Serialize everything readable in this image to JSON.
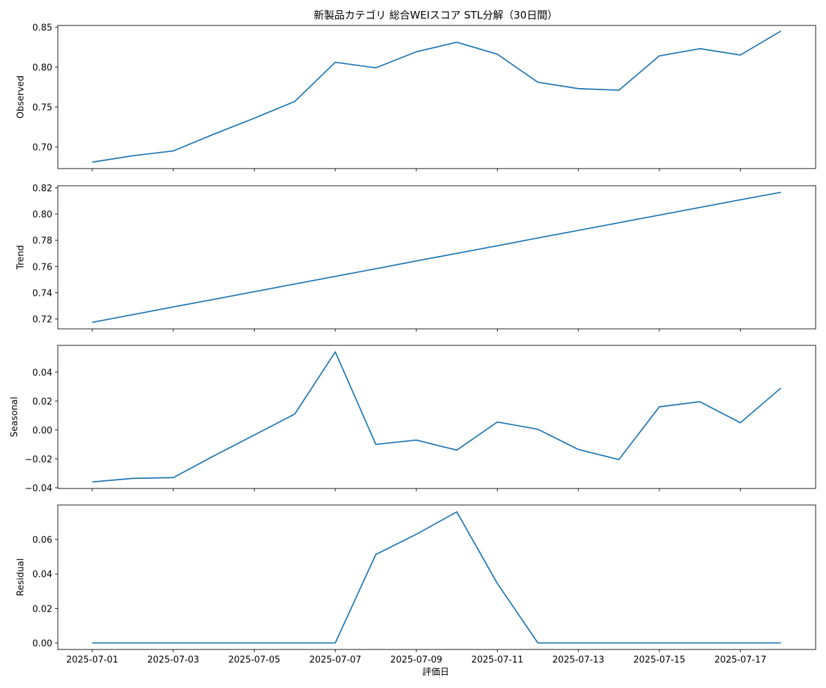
{
  "figure": {
    "title": "新製品カテゴリ 総合WEIスコア STL分解（30日間）",
    "xlabel": "評価日"
  },
  "chart_data": [
    {
      "type": "line",
      "ylabel": "Observed",
      "x": [
        "2025-07-01",
        "2025-07-02",
        "2025-07-03",
        "2025-07-04",
        "2025-07-05",
        "2025-07-06",
        "2025-07-07",
        "2025-07-08",
        "2025-07-09",
        "2025-07-10",
        "2025-07-11",
        "2025-07-12",
        "2025-07-13",
        "2025-07-14",
        "2025-07-15",
        "2025-07-16",
        "2025-07-17",
        "2025-07-18"
      ],
      "values": [
        0.681,
        0.689,
        0.695,
        0.716,
        0.736,
        0.757,
        0.806,
        0.799,
        0.819,
        0.831,
        0.816,
        0.781,
        0.773,
        0.771,
        0.814,
        0.823,
        0.815,
        0.845
      ],
      "ylim": [
        0.673,
        0.852
      ],
      "yticks": [
        "0.70",
        "0.75",
        "0.80",
        "0.85"
      ],
      "ytick_values": [
        0.7,
        0.75,
        0.8,
        0.85
      ],
      "color": "#1f77b4"
    },
    {
      "type": "line",
      "ylabel": "Trend",
      "x": [
        "2025-07-01",
        "2025-07-02",
        "2025-07-03",
        "2025-07-04",
        "2025-07-05",
        "2025-07-06",
        "2025-07-07",
        "2025-07-08",
        "2025-07-09",
        "2025-07-10",
        "2025-07-11",
        "2025-07-12",
        "2025-07-13",
        "2025-07-14",
        "2025-07-15",
        "2025-07-16",
        "2025-07-17",
        "2025-07-18"
      ],
      "values": [
        0.7175,
        0.7233,
        0.7292,
        0.735,
        0.7408,
        0.7467,
        0.7525,
        0.7583,
        0.7642,
        0.77,
        0.7758,
        0.7817,
        0.7875,
        0.7933,
        0.7992,
        0.805,
        0.8108,
        0.8165
      ],
      "ylim": [
        0.7125,
        0.8215
      ],
      "yticks": [
        "0.72",
        "0.74",
        "0.76",
        "0.78",
        "0.80",
        "0.82"
      ],
      "ytick_values": [
        0.72,
        0.74,
        0.76,
        0.78,
        0.8,
        0.82
      ],
      "color": "#1f77b4"
    },
    {
      "type": "line",
      "ylabel": "Seasonal",
      "x": [
        "2025-07-01",
        "2025-07-02",
        "2025-07-03",
        "2025-07-04",
        "2025-07-05",
        "2025-07-06",
        "2025-07-07",
        "2025-07-08",
        "2025-07-09",
        "2025-07-10",
        "2025-07-11",
        "2025-07-12",
        "2025-07-13",
        "2025-07-14",
        "2025-07-15",
        "2025-07-16",
        "2025-07-17",
        "2025-07-18"
      ],
      "values": [
        -0.036,
        -0.0335,
        -0.033,
        -0.018,
        -0.0035,
        0.011,
        0.054,
        -0.01,
        -0.007,
        -0.014,
        0.0055,
        0.0005,
        -0.0135,
        -0.0205,
        0.016,
        0.0195,
        0.005,
        0.029
      ],
      "ylim": [
        -0.0405,
        0.0585
      ],
      "yticks": [
        "−0.04",
        "−0.02",
        "0.00",
        "0.02",
        "0.04"
      ],
      "ytick_values": [
        -0.04,
        -0.02,
        0.0,
        0.02,
        0.04
      ],
      "color": "#1f77b4"
    },
    {
      "type": "line",
      "ylabel": "Residual",
      "x": [
        "2025-07-01",
        "2025-07-02",
        "2025-07-03",
        "2025-07-04",
        "2025-07-05",
        "2025-07-06",
        "2025-07-07",
        "2025-07-08",
        "2025-07-09",
        "2025-07-10",
        "2025-07-11",
        "2025-07-12",
        "2025-07-13",
        "2025-07-14",
        "2025-07-15",
        "2025-07-16",
        "2025-07-17",
        "2025-07-18"
      ],
      "values": [
        0.0,
        0.0,
        0.0,
        0.0,
        0.0,
        0.0,
        0.0,
        0.0513,
        0.063,
        0.076,
        0.0345,
        0.0,
        0.0,
        0.0,
        0.0,
        0.0,
        0.0,
        0.0
      ],
      "ylim": [
        -0.0038,
        0.08
      ],
      "yticks": [
        "0.00",
        "0.02",
        "0.04",
        "0.06"
      ],
      "ytick_values": [
        0.0,
        0.02,
        0.04,
        0.06
      ],
      "color": "#1f77b4"
    }
  ],
  "xticks": [
    "2025-07-01",
    "2025-07-03",
    "2025-07-05",
    "2025-07-07",
    "2025-07-09",
    "2025-07-11",
    "2025-07-13",
    "2025-07-15",
    "2025-07-17"
  ],
  "xtick_index": [
    0,
    2,
    4,
    6,
    8,
    10,
    12,
    14,
    16
  ]
}
